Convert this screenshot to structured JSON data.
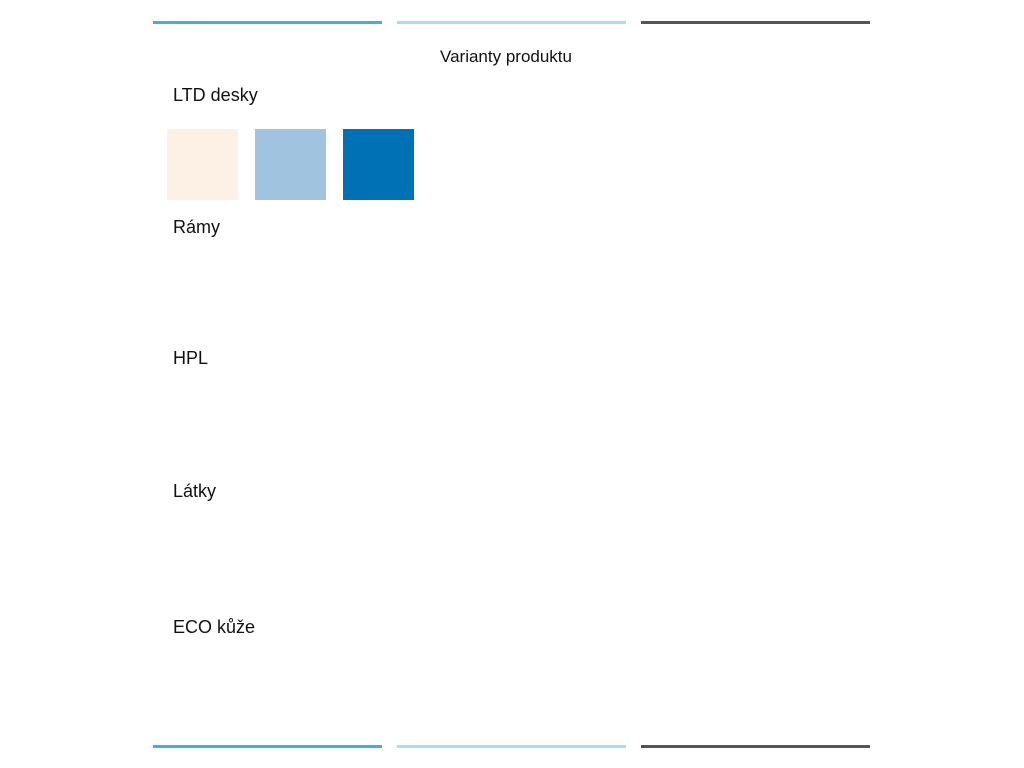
{
  "title": "Varianty produktu",
  "sections": [
    {
      "label": "LTD desky",
      "swatches": [
        "#fdf1e6",
        "#a0c4e0",
        "#0071b5"
      ]
    },
    {
      "label": "Rámy"
    },
    {
      "label": "HPL"
    },
    {
      "label": "Látky"
    },
    {
      "label": "ECO kůže"
    }
  ]
}
